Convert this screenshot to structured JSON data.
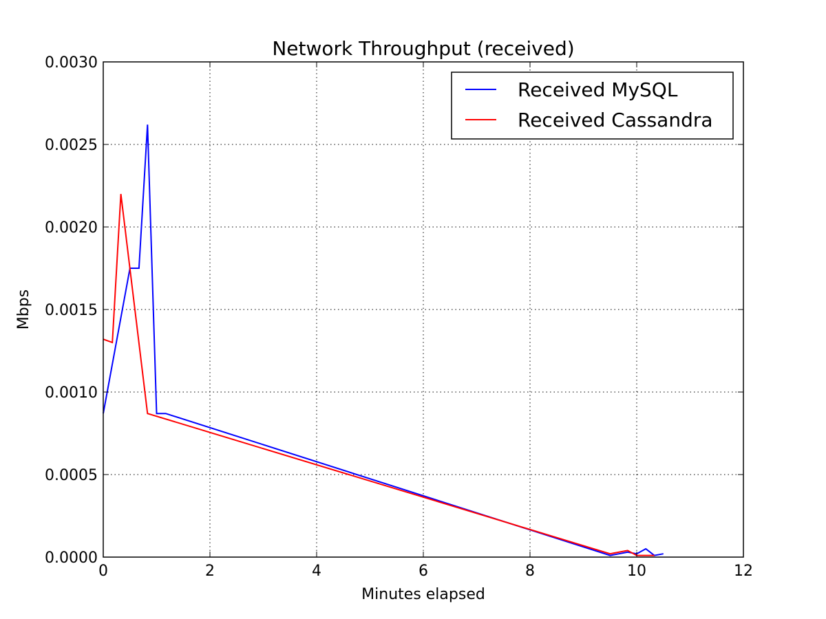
{
  "chart_data": {
    "type": "line",
    "title": "Network Throughput (received)",
    "xlabel": "Minutes elapsed",
    "ylabel": "Mbps",
    "xlim": [
      0,
      12
    ],
    "ylim": [
      0,
      0.003
    ],
    "xticks": [
      0,
      2,
      4,
      6,
      8,
      10,
      12
    ],
    "xtick_labels": [
      "0",
      "2",
      "4",
      "6",
      "8",
      "10",
      "12"
    ],
    "yticks": [
      0,
      0.0005,
      0.001,
      0.0015,
      0.002,
      0.0025,
      0.003
    ],
    "ytick_labels": [
      "0.0000",
      "0.0005",
      "0.0010",
      "0.0015",
      "0.0020",
      "0.0025",
      "0.0030"
    ],
    "grid": true,
    "legend_position": "top-right",
    "series": [
      {
        "name": "Received MySQL",
        "color": "#0000ff",
        "x": [
          0.0,
          0.5,
          0.67,
          0.83,
          1.0,
          1.17,
          9.5,
          9.67,
          9.83,
          10.0,
          10.17,
          10.33,
          10.5
        ],
        "y": [
          0.00087,
          0.00175,
          0.00175,
          0.00262,
          0.00087,
          0.00087,
          1e-05,
          2e-05,
          3e-05,
          2e-05,
          5e-05,
          1e-05,
          2e-05
        ]
      },
      {
        "name": "Received Cassandra",
        "color": "#ff0000",
        "x": [
          0.0,
          0.17,
          0.33,
          0.83,
          9.5,
          9.83,
          10.0,
          10.17,
          10.33
        ],
        "y": [
          0.00132,
          0.0013,
          0.0022,
          0.00087,
          2e-05,
          4e-05,
          1e-05,
          1e-05,
          1e-05
        ]
      }
    ]
  }
}
